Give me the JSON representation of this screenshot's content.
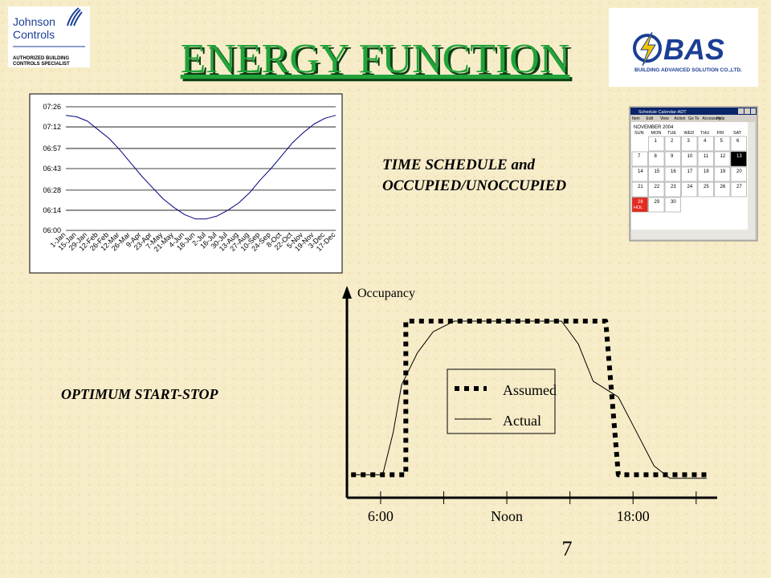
{
  "header": {
    "title": "ENERGY FUNCTION",
    "left_logo": {
      "name_lines": [
        "Johnson",
        "Controls"
      ],
      "tag_lines": [
        "AUTHORIZED BUILDING",
        "CONTROLS SPECIALIST"
      ]
    },
    "right_logo": {
      "name": "BAS",
      "tagline": "BUILDING ADVANCED SOLUTION CO.,LTD."
    }
  },
  "labels": {
    "schedule": [
      "TIME SCHEDULE and",
      "OCCUPIED/UNOCCUPIED"
    ],
    "optimum": "OPTIMUM START-STOP"
  },
  "page_number": "7",
  "calendar": {
    "window_title": "Schedule Calendar-ADT",
    "menu": [
      "Item",
      "Edit",
      "View",
      "Action",
      "Go To",
      "Accessory",
      "Help"
    ],
    "month": "NOVEMBER 2004",
    "weekdays": [
      "SUN",
      "MON",
      "TUE",
      "WED",
      "THU",
      "FRI",
      "SAT"
    ],
    "weeks": [
      [
        null,
        1,
        2,
        3,
        4,
        5,
        6
      ],
      [
        7,
        8,
        9,
        10,
        11,
        12,
        13
      ],
      [
        14,
        15,
        16,
        17,
        18,
        19,
        20
      ],
      [
        21,
        22,
        23,
        24,
        25,
        26,
        27
      ],
      [
        28,
        29,
        30,
        null,
        null,
        null,
        null
      ]
    ],
    "holiday_label": "HOL",
    "holiday_day": 28,
    "holiday_color": "#e52a1f",
    "selected_day": 13,
    "selected_color": "#000000"
  },
  "chart_data": [
    {
      "type": "line",
      "categories": [
        "1-Jan",
        "15-Jan",
        "29-Jan",
        "12-Feb",
        "26-Feb",
        "12-Mar",
        "26-Mar",
        "9-Apr",
        "23-Apr",
        "7-May",
        "21-May",
        "4-Jun",
        "18-Jun",
        "2-Jul",
        "16-Jul",
        "30-Jul",
        "13-Aug",
        "27-Aug",
        "10-Sep",
        "24-Sep",
        "8-Oct",
        "22-Oct",
        "5-Nov",
        "19-Nov",
        "3-Dec",
        "17-Dec"
      ],
      "series": [
        {
          "color": "#000080",
          "values": [
            440,
            439,
            436,
            430,
            424,
            416,
            407,
            398,
            390,
            382,
            376,
            371,
            368,
            368,
            370,
            374,
            379,
            386,
            395,
            403,
            412,
            421,
            428,
            434,
            438,
            440
          ]
        }
      ],
      "ylim": [
        360,
        446
      ],
      "yticks": [
        {
          "value": 360,
          "label": "06:00"
        },
        {
          "value": 374,
          "label": "06:14"
        },
        {
          "value": 388,
          "label": "06:28"
        },
        {
          "value": 403,
          "label": "06:43"
        },
        {
          "value": 417,
          "label": "06:57"
        },
        {
          "value": 432,
          "label": "07:12"
        },
        {
          "value": 446,
          "label": "07:26"
        }
      ],
      "grid": true
    },
    {
      "type": "line",
      "y_label": "Occupancy",
      "xlim": [
        4.4,
        22
      ],
      "ylim": [
        0,
        1.2
      ],
      "xticks": [
        {
          "value": 6,
          "label": "6:00"
        },
        {
          "value": 9,
          "label": null
        },
        {
          "value": 12,
          "label": "Noon"
        },
        {
          "value": 15,
          "label": null
        },
        {
          "value": 18,
          "label": "18:00"
        },
        {
          "value": 21,
          "label": null
        }
      ],
      "series": [
        {
          "name": "Assumed",
          "color": "#000000",
          "style": "dotted",
          "x": [
            4.6,
            7.2,
            7.2,
            16.7,
            17.3,
            21.7
          ],
          "values": [
            0.13,
            0.13,
            1,
            1,
            0.13,
            0.13
          ]
        },
        {
          "name": "Actual",
          "color": "#000000",
          "style": "solid",
          "x": [
            4.6,
            6.1,
            6.6,
            7.0,
            7.75,
            8.5,
            9.5,
            14.6,
            15.4,
            16.1,
            17.3,
            18.0,
            19.0,
            19.75,
            21.5
          ],
          "values": [
            0.13,
            0.13,
            0.37,
            0.64,
            0.82,
            0.94,
            1,
            1,
            0.87,
            0.66,
            0.57,
            0.41,
            0.18,
            0.11,
            0.11
          ]
        }
      ],
      "legend": "center"
    }
  ]
}
